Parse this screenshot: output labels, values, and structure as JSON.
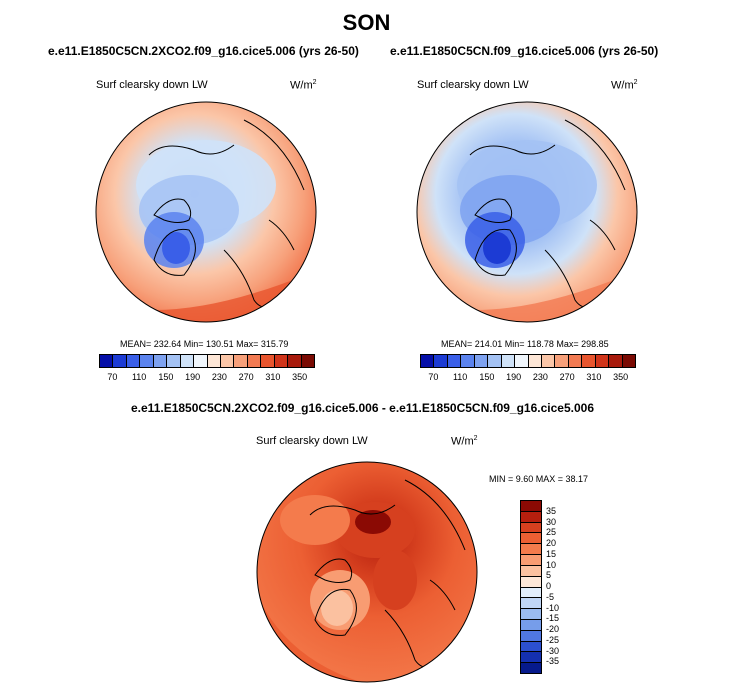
{
  "season": "SON",
  "panels": [
    {
      "title": "e.e11.E1850C5CN.2XCO2.f09_g16.cice5.006 (yrs 26-50)",
      "variable": "Surf clearsky down LW",
      "units": "W/m",
      "units_sup": "2",
      "stats": "MEAN= 232.64   Min= 130.51   Max= 315.79"
    },
    {
      "title": "e.e11.E1850C5CN.f09_g16.cice5.006 (yrs 26-50)",
      "variable": "Surf clearsky down LW",
      "units": "W/m",
      "units_sup": "2",
      "stats": "MEAN= 214.01   Min= 118.78   Max= 298.85"
    }
  ],
  "diff": {
    "title": "e.e11.E1850C5CN.2XCO2.f09_g16.cice5.006 - e.e11.E1850C5CN.f09_g16.cice5.006",
    "variable": "Surf clearsky down LW",
    "units": "W/m",
    "units_sup": "2",
    "minmax": "MIN =   9.60 MAX =  38.17"
  },
  "abs_colorbar": {
    "ticks": [
      "70",
      "110",
      "150",
      "190",
      "230",
      "270",
      "310",
      "350"
    ],
    "colors": [
      "#050fa8",
      "#1c3bd4",
      "#3a5fe8",
      "#5b83ee",
      "#7ea2f0",
      "#a4c2f4",
      "#cfe2f8",
      "#f0f6fc",
      "#fde6d6",
      "#fbc6a8",
      "#f7a07a",
      "#f27a52",
      "#e8552e",
      "#d0341a",
      "#a81a0c",
      "#7a0a03"
    ]
  },
  "diff_colorbar": {
    "ticks": [
      "35",
      "30",
      "25",
      "20",
      "15",
      "10",
      "5",
      "0",
      "-5",
      "-10",
      "-15",
      "-20",
      "-25",
      "-30",
      "-35"
    ],
    "colors": [
      "#8b0a04",
      "#b51f0e",
      "#d6401f",
      "#ec5f33",
      "#f47b4c",
      "#f89c72",
      "#fbc1a0",
      "#fde7d8",
      "#e2eefc",
      "#c0d6f6",
      "#9bbbf0",
      "#769dea",
      "#5077e2",
      "#2c50d0",
      "#1430b0",
      "#061a8c"
    ]
  },
  "icons": {
    "polar_map_1": "arctic-map-icon",
    "polar_map_2": "arctic-map-icon",
    "polar_map_diff": "arctic-map-icon"
  }
}
